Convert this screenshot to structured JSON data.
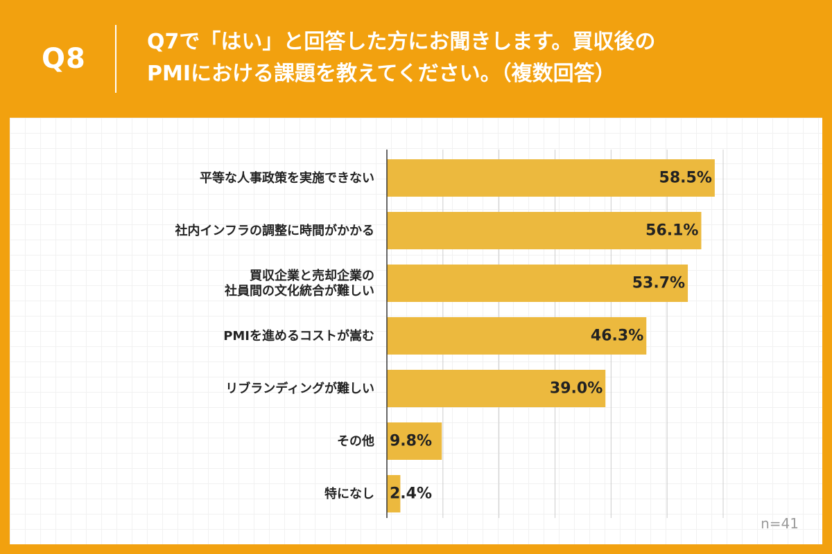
{
  "header": {
    "question_number": "Q8",
    "question_line1": "Q7で「はい」と回答した方にお聞きします。買収後の",
    "question_line2": "PMIにおける課題を教えてください。（複数回答）"
  },
  "footer": {
    "sample_size": "n=41"
  },
  "colors": {
    "background": "#f2a10f",
    "bar": "#ecb93e",
    "grid": "#cccccc",
    "text": "#222222"
  },
  "chart_data": {
    "type": "bar",
    "orientation": "horizontal",
    "categories": [
      "平等な人事政策を実施できない",
      "社内インフラの調整に時間がかかる",
      "買収企業と売却企業の\n社員間の文化統合が難しい",
      "PMIを進めるコストが嵩む",
      "リブランディングが難しい",
      "その他",
      "特になし"
    ],
    "values": [
      58.5,
      56.1,
      53.7,
      46.3,
      39.0,
      9.8,
      2.4
    ],
    "value_labels": [
      "58.5%",
      "56.1%",
      "53.7%",
      "46.3%",
      "39.0%",
      "9.8%",
      "2.4%"
    ],
    "xlim": [
      0,
      60
    ],
    "grid": true
  }
}
